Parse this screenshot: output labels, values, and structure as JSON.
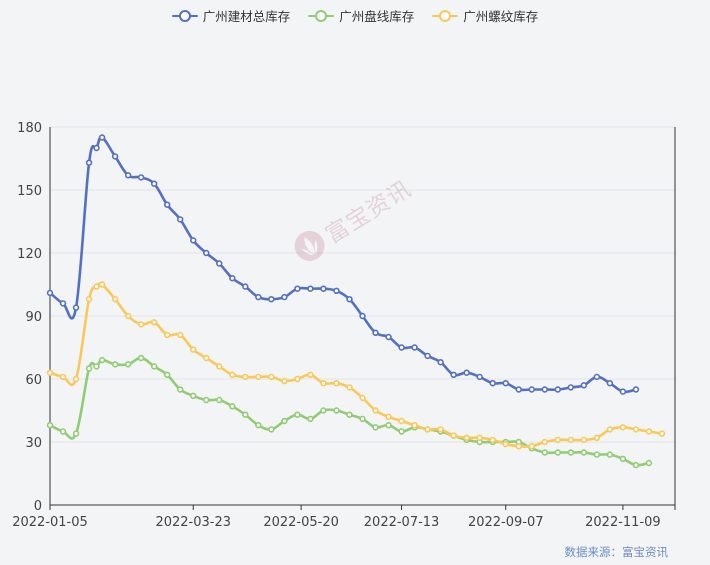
{
  "legend": {
    "items": [
      {
        "label": "广州建材总库存",
        "color": "#5470c6"
      },
      {
        "label": "广州盘线库存",
        "color": "#91cc75"
      },
      {
        "label": "广州螺纹库存",
        "color": "#fac858"
      }
    ]
  },
  "source": "数据来源：富宝资讯",
  "watermark": "富宝资讯",
  "chart_data": {
    "type": "line",
    "x": [
      "2022-01-05",
      "2022-01-12",
      "2022-01-19",
      "2022-01-26",
      "2022-01-30",
      "2022-02-02",
      "2022-02-09",
      "2022-02-16",
      "2022-02-23",
      "2022-03-02",
      "2022-03-09",
      "2022-03-16",
      "2022-03-23",
      "2022-03-30",
      "2022-04-06",
      "2022-04-13",
      "2022-04-20",
      "2022-04-27",
      "2022-05-04",
      "2022-05-11",
      "2022-05-18",
      "2022-05-25",
      "2022-06-01",
      "2022-06-08",
      "2022-06-15",
      "2022-06-22",
      "2022-06-29",
      "2022-07-06",
      "2022-07-13",
      "2022-07-20",
      "2022-07-27",
      "2022-08-03",
      "2022-08-10",
      "2022-08-17",
      "2022-08-24",
      "2022-08-31",
      "2022-09-07",
      "2022-09-14",
      "2022-09-21",
      "2022-09-28",
      "2022-10-05",
      "2022-10-12",
      "2022-10-19",
      "2022-10-26",
      "2022-11-02",
      "2022-11-09",
      "2022-11-16",
      "2022-11-23",
      "2022-11-30",
      "2022-12-07"
    ],
    "x_ticks": [
      "2022-01-05",
      "2022-03-23",
      "2022-05-20",
      "2022-07-13",
      "2022-09-07",
      "2022-11-09"
    ],
    "series": [
      {
        "name": "广州建材总库存",
        "values": [
          101,
          96,
          94,
          163,
          170,
          175,
          166,
          157,
          156,
          153,
          143,
          136,
          126,
          120,
          115,
          108,
          104,
          99,
          98,
          99,
          103,
          103,
          103,
          102,
          98,
          90,
          82,
          80,
          75,
          75,
          71,
          68,
          62,
          63,
          61,
          58,
          58,
          55,
          55,
          55,
          55,
          56,
          57,
          61,
          58,
          54,
          55,
          null,
          null,
          null
        ]
      },
      {
        "name": "广州盘线库存",
        "values": [
          38,
          35,
          34,
          65,
          66,
          69,
          67,
          67,
          70,
          66,
          62,
          55,
          52,
          50,
          50,
          47,
          43,
          38,
          36,
          40,
          43,
          41,
          45,
          45,
          43,
          41,
          37,
          38,
          35,
          37,
          36,
          35,
          33,
          31,
          30,
          30,
          30,
          30,
          27,
          25,
          25,
          25,
          25,
          24,
          24,
          22,
          19,
          20,
          null,
          null
        ]
      },
      {
        "name": "广州螺纹库存",
        "values": [
          63,
          61,
          60,
          98,
          104,
          105,
          98,
          90,
          86,
          87,
          81,
          81,
          74,
          70,
          66,
          62,
          61,
          61,
          61,
          59,
          60,
          62,
          58,
          58,
          56,
          51,
          45,
          42,
          40,
          38,
          36,
          36,
          33,
          32,
          32,
          31,
          29,
          28,
          28,
          30,
          31,
          31,
          31,
          32,
          36,
          37,
          36,
          35,
          34,
          null
        ]
      }
    ],
    "ylim": [
      0,
      180
    ],
    "yticks": [
      0,
      30,
      60,
      90,
      120,
      150,
      180
    ],
    "grid": true,
    "legend_position": "top-center"
  }
}
